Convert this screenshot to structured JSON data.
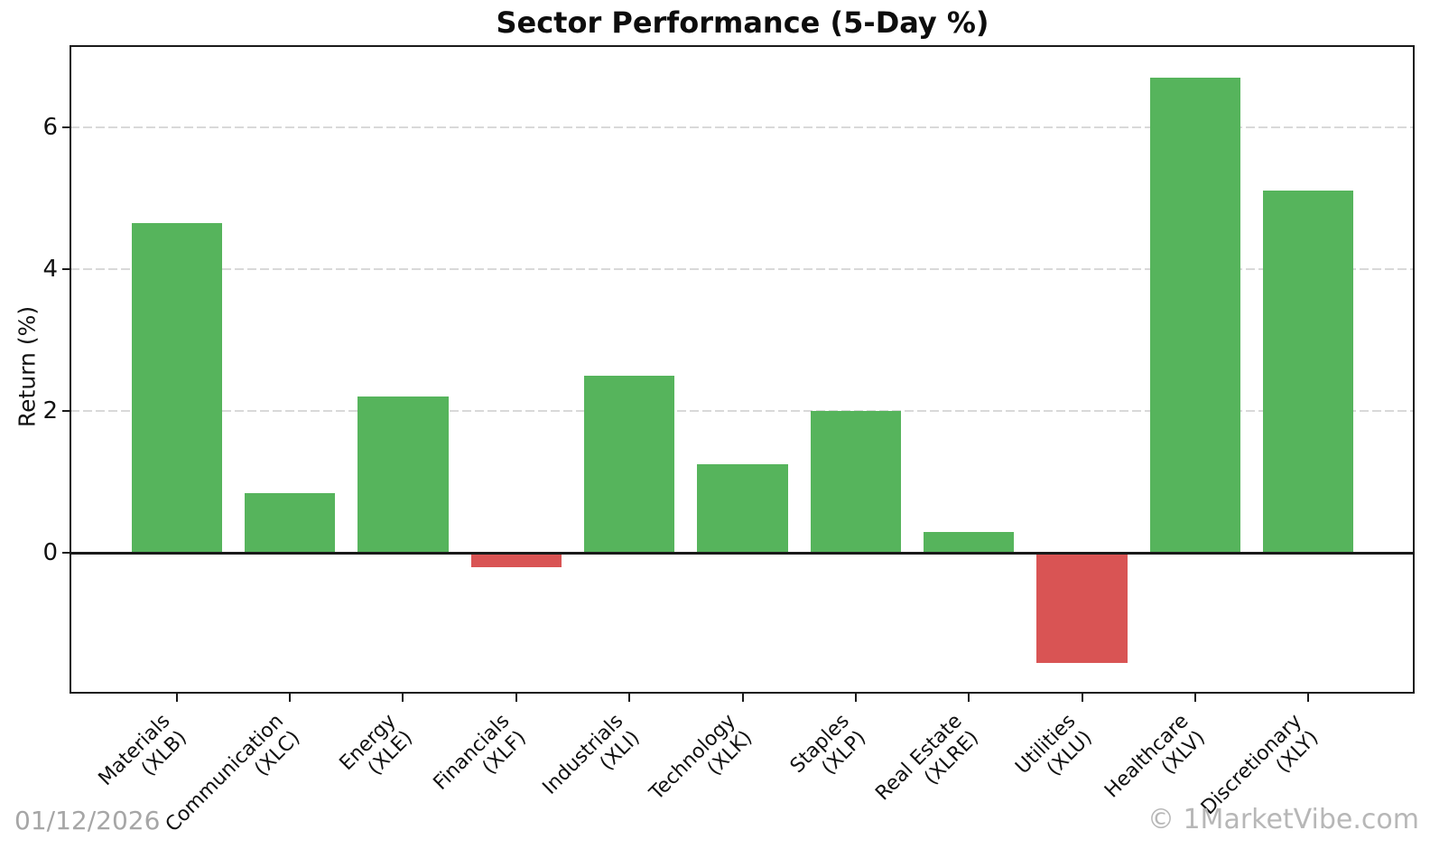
{
  "page": {
    "title": "Sector Performance (5-Day %)",
    "ylabel": "Return (%)",
    "watermark_date": "01/12/2026",
    "watermark_brand": "© 1MarketVibe.com"
  },
  "colors": {
    "positive_bar": "#56b45c",
    "negative_bar": "#d95454",
    "gridline": "#d9d9d9",
    "axis": "#1a1a1a",
    "watermark_date": "#a6a6a6",
    "watermark_brand": "#b7b7b7"
  },
  "chart_data": {
    "type": "bar",
    "title": "Sector Performance (5-Day %)",
    "xlabel": "",
    "ylabel": "Return (%)",
    "categories": [
      "Materials\n(XLB)",
      "Communication\n(XLC)",
      "Energy\n(XLE)",
      "Financials\n(XLF)",
      "Industrials\n(XLI)",
      "Technology\n(XLK)",
      "Staples\n(XLP)",
      "Real Estate\n(XLRE)",
      "Utilities\n(XLU)",
      "Healthcare\n(XLV)",
      "Discretionary\n(XLY)"
    ],
    "values": [
      4.65,
      0.85,
      2.2,
      -0.2,
      2.5,
      1.25,
      2.0,
      0.3,
      -1.55,
      6.7,
      5.1
    ],
    "bar_width": 0.8,
    "yticks": [
      0,
      2,
      4,
      6
    ],
    "ylim": [
      -1.98,
      7.14
    ],
    "xlim": [
      -0.94,
      10.94
    ],
    "grid": "horizontal-dashed",
    "legend": null,
    "positive_color": "#56b45c",
    "negative_color": "#d95454"
  }
}
